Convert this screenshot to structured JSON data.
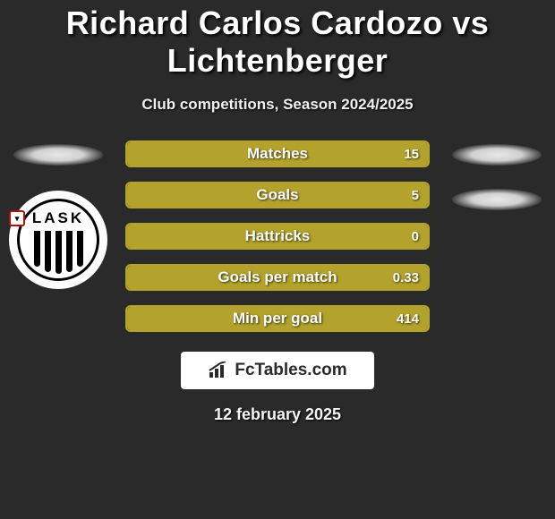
{
  "title": "Richard Carlos Cardozo vs Lichtenberger",
  "subtitle": "Club competitions, Season 2024/2025",
  "date": "12 february 2025",
  "brand": "FcTables.com",
  "bar_color": "#b3a22b",
  "border_color": "#b3a22b",
  "background_color": "#2a2a2a",
  "text_color": "#ffffff",
  "left_club": {
    "name": "LASK",
    "logo_text": "LASK"
  },
  "stats": [
    {
      "label": "Matches",
      "value": "15",
      "fill_pct": 100
    },
    {
      "label": "Goals",
      "value": "5",
      "fill_pct": 100
    },
    {
      "label": "Hattricks",
      "value": "0",
      "fill_pct": 100
    },
    {
      "label": "Goals per match",
      "value": "0.33",
      "fill_pct": 100
    },
    {
      "label": "Min per goal",
      "value": "414",
      "fill_pct": 100
    }
  ]
}
